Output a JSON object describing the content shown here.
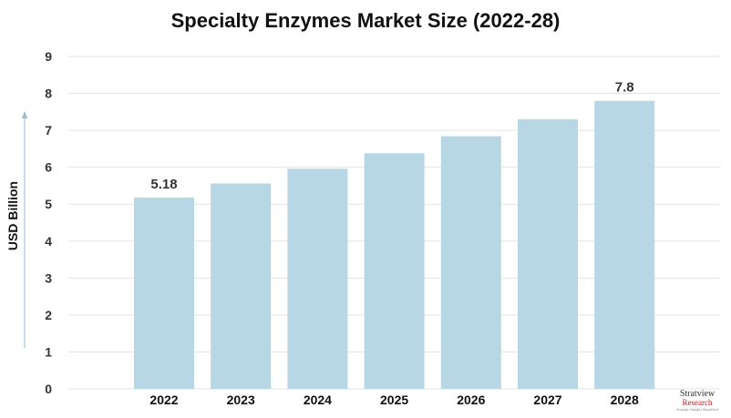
{
  "chart_data": {
    "type": "bar",
    "title": "Specialty Enzymes Market Size (2022-28)",
    "ylabel": "USD Billion",
    "xlabel": "",
    "categories": [
      "2022",
      "2023",
      "2024",
      "2025",
      "2026",
      "2027",
      "2028"
    ],
    "values": [
      5.18,
      5.56,
      5.96,
      6.38,
      6.84,
      7.3,
      7.8
    ],
    "data_labels": {
      "2022": "5.18",
      "2028": "7.8"
    },
    "ylim": [
      0,
      9
    ],
    "yticks": [
      "0",
      "1",
      "2",
      "3",
      "4",
      "5",
      "6",
      "7",
      "8",
      "9"
    ],
    "grid": true,
    "bar_color": "#b6d7e3",
    "grid_color": "#e3e3e3",
    "axis_arrow_color": "#8fbcd4"
  },
  "logo": {
    "name": "Stratview",
    "sub": "Research",
    "tagline": "Strategic Insights Simplified"
  }
}
